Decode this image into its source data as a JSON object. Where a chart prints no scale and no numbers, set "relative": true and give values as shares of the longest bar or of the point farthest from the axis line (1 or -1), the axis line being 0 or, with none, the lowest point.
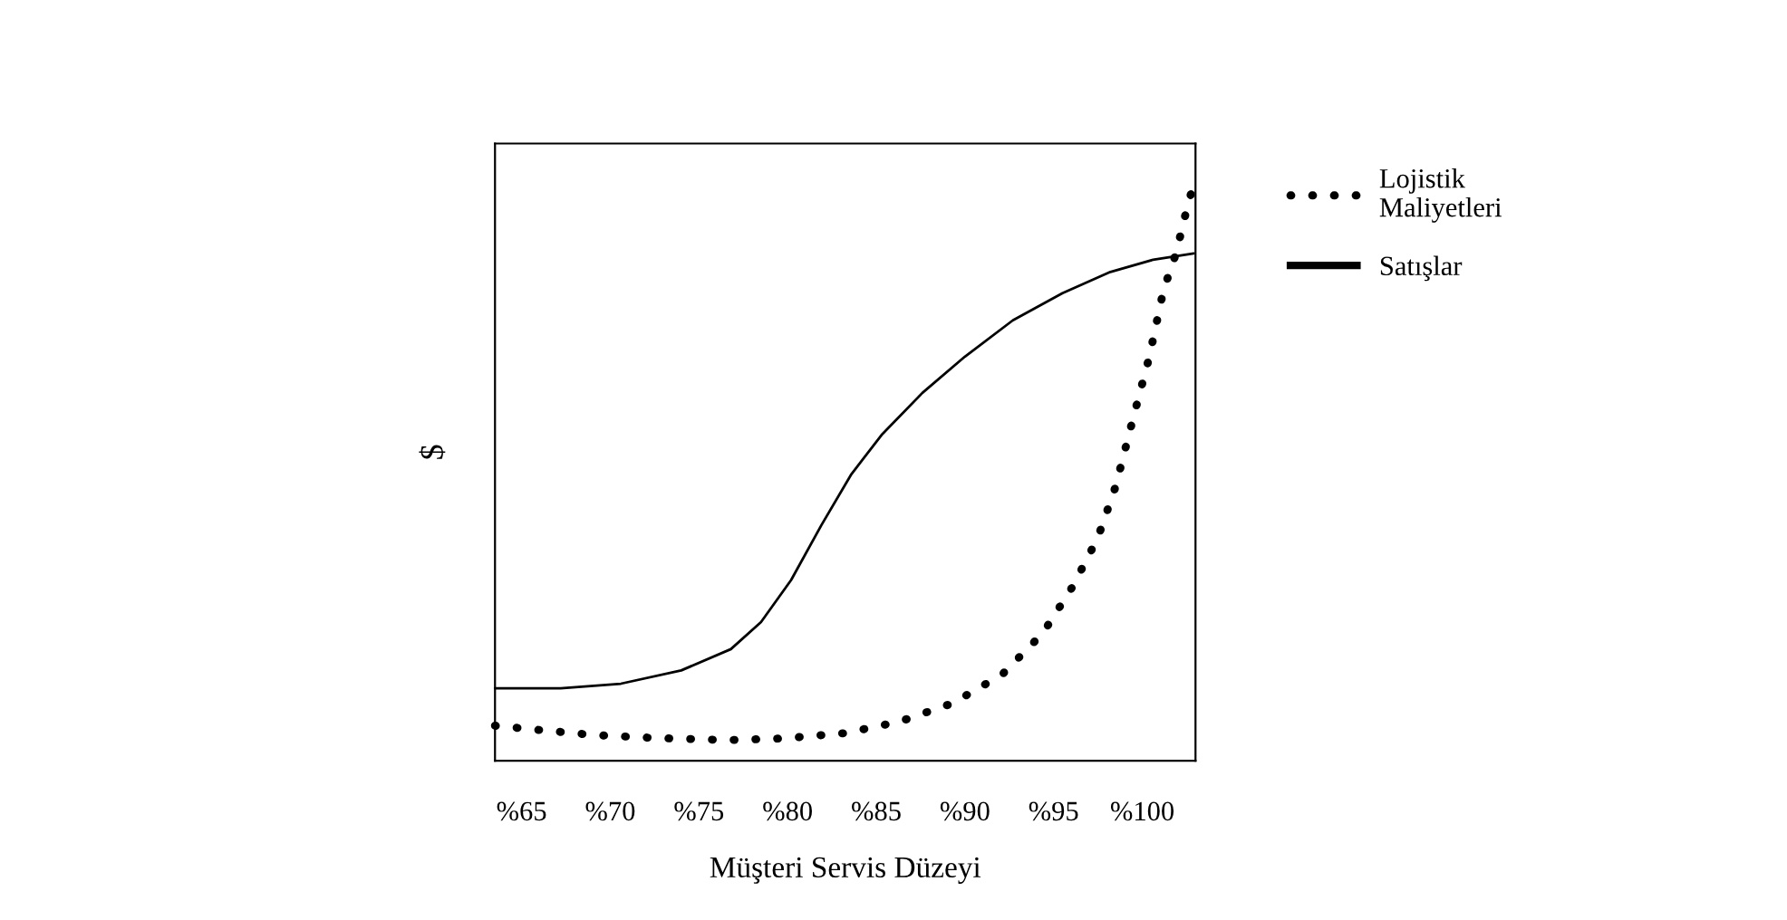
{
  "chart_data": {
    "type": "line",
    "relative": true,
    "xlabel": "Müşteri Servis Düzeyi",
    "ylabel": "$",
    "xlim": [
      63.5,
      103
    ],
    "xticks": [
      {
        "value": 65,
        "label": "%65"
      },
      {
        "value": 70,
        "label": "%70"
      },
      {
        "value": 75,
        "label": "%75"
      },
      {
        "value": 80,
        "label": "%80"
      },
      {
        "value": 85,
        "label": "%85"
      },
      {
        "value": 90,
        "label": "%90"
      },
      {
        "value": 95,
        "label": "%95"
      },
      {
        "value": 100,
        "label": "%100"
      }
    ],
    "grid": false,
    "legend": "top right",
    "series": [
      {
        "name": "Lojistik\nMaliyetleri",
        "color": "#000000",
        "line_style": "dotted",
        "x": [
          63.5,
          65.5,
          69.0,
          72.3,
          76.6,
          79.8,
          83.2,
          86.3,
          89.3,
          92.1,
          94.4,
          96.1,
          97.5,
          98.5,
          99.5,
          100.4,
          101.2,
          101.9,
          102.6,
          102.9
        ],
        "values": [
          0.061,
          0.055,
          0.045,
          0.04,
          0.036,
          0.039,
          0.048,
          0.068,
          0.1,
          0.15,
          0.222,
          0.304,
          0.388,
          0.477,
          0.597,
          0.702,
          0.818,
          0.881,
          0.97,
          1.0
        ]
      },
      {
        "name": "Satışlar",
        "color": "#000000",
        "line_style": "solid",
        "x": [
          63.5,
          67.2,
          70.6,
          74.0,
          76.8,
          78.5,
          80.2,
          81.9,
          83.6,
          85.3,
          87.6,
          90.0,
          92.7,
          95.5,
          98.2,
          100.6,
          102.9
        ],
        "values": [
          0.126,
          0.126,
          0.134,
          0.157,
          0.194,
          0.241,
          0.314,
          0.409,
          0.498,
          0.566,
          0.639,
          0.702,
          0.765,
          0.812,
          0.849,
          0.87,
          0.881
        ]
      }
    ]
  }
}
